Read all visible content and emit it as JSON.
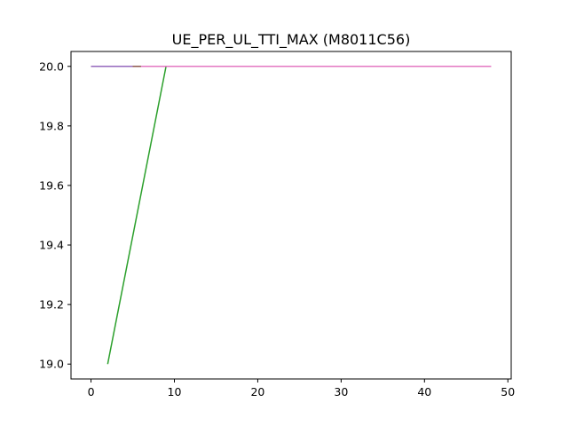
{
  "chart_data": {
    "type": "line",
    "title": "UE_PER_UL_TTI_MAX (M8011C56)",
    "xlabel": "",
    "ylabel": "",
    "xlim": [
      -2.4,
      50.4
    ],
    "ylim": [
      18.95,
      20.05
    ],
    "xticks": [
      0,
      10,
      20,
      30,
      40,
      50
    ],
    "yticks": [
      19.0,
      19.2,
      19.4,
      19.6,
      19.8,
      20.0
    ],
    "xtick_labels": [
      "0",
      "10",
      "20",
      "30",
      "40",
      "50"
    ],
    "ytick_labels": [
      "19.0",
      "19.2",
      "19.4",
      "19.6",
      "19.8",
      "20.0"
    ],
    "grid": false,
    "series": [
      {
        "color": "#1f77b4",
        "x": [
          0,
          44
        ],
        "y": [
          20,
          20
        ]
      },
      {
        "color": "#ff7f0e",
        "x": [
          0,
          44
        ],
        "y": [
          20,
          20
        ]
      },
      {
        "color": "#2ca02c",
        "x": [
          2,
          9,
          44
        ],
        "y": [
          19,
          20,
          20
        ]
      },
      {
        "color": "#d62728",
        "x": [
          0,
          44
        ],
        "y": [
          20,
          20
        ]
      },
      {
        "color": "#8c564b",
        "x": [
          5,
          44
        ],
        "y": [
          20,
          20
        ]
      },
      {
        "color": "#9467bd",
        "x": [
          0,
          5
        ],
        "y": [
          20,
          20
        ]
      },
      {
        "color": "#e377c2",
        "x": [
          6,
          48
        ],
        "y": [
          20,
          20
        ]
      }
    ]
  }
}
